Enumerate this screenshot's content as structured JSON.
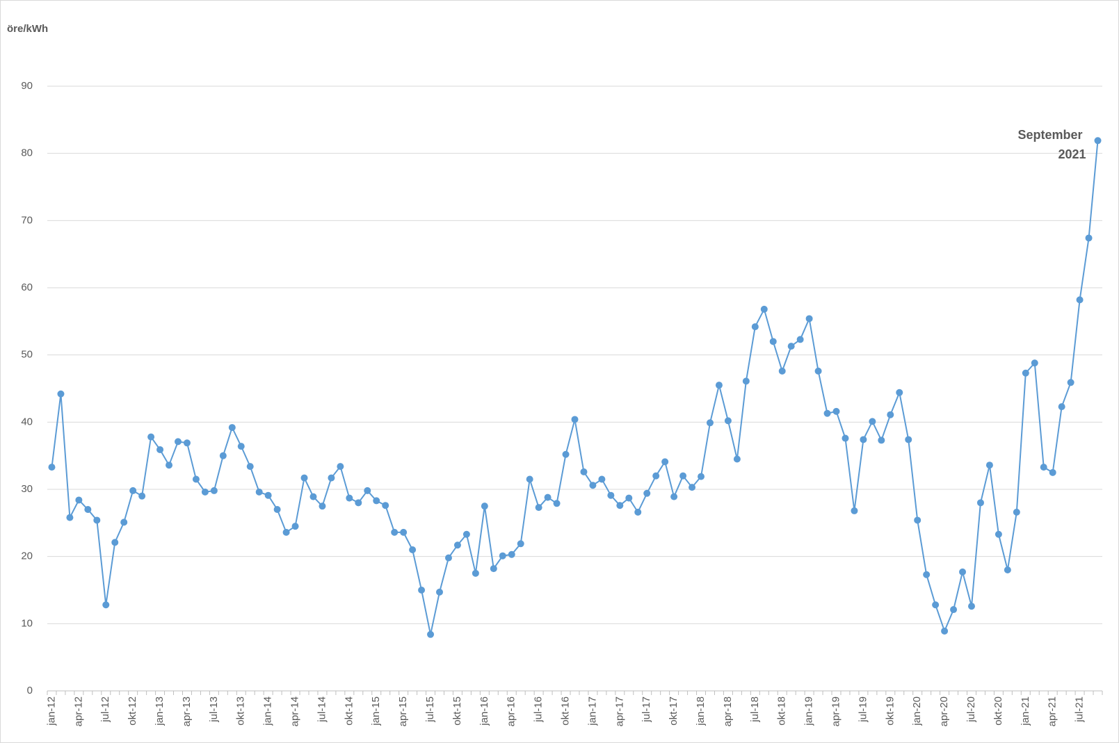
{
  "chart_data": {
    "type": "line",
    "ylabel": "öre/kWh",
    "categories": [
      "jan-12",
      null,
      null,
      "apr-12",
      null,
      null,
      "jul-12",
      null,
      null,
      "okt-12",
      null,
      null,
      "jan-13",
      null,
      null,
      "apr-13",
      null,
      null,
      "jul-13",
      null,
      null,
      "okt-13",
      null,
      null,
      "jan-14",
      null,
      null,
      "apr-14",
      null,
      null,
      "jul-14",
      null,
      null,
      "okt-14",
      null,
      null,
      "jan-15",
      null,
      null,
      "apr-15",
      null,
      null,
      "jul-15",
      null,
      null,
      "okt-15",
      null,
      null,
      "jan-16",
      null,
      null,
      "apr-16",
      null,
      null,
      "jul-16",
      null,
      null,
      "okt-16",
      null,
      null,
      "jan-17",
      null,
      null,
      "apr-17",
      null,
      null,
      "jul-17",
      null,
      null,
      "okt-17",
      null,
      null,
      "jan-18",
      null,
      null,
      "apr-18",
      null,
      null,
      "jul-18",
      null,
      null,
      "okt-18",
      null,
      null,
      "jan-19",
      null,
      null,
      "apr-19",
      null,
      null,
      "jul-19",
      null,
      null,
      "okt-19",
      null,
      null,
      "jan-20",
      null,
      null,
      "apr-20",
      null,
      null,
      "jul-20",
      null,
      null,
      "okt-20",
      null,
      null,
      "jan-21",
      null,
      null,
      "apr-21",
      null,
      null,
      "jul-21",
      null,
      null
    ],
    "values": [
      33.3,
      44.2,
      25.8,
      28.4,
      27.0,
      25.4,
      12.8,
      22.1,
      25.1,
      29.8,
      29.0,
      37.8,
      35.9,
      33.6,
      37.1,
      36.9,
      31.5,
      29.6,
      29.8,
      35.0,
      39.2,
      36.4,
      33.4,
      29.6,
      29.1,
      27.0,
      23.6,
      24.5,
      31.7,
      28.9,
      27.5,
      31.7,
      33.4,
      28.7,
      28.0,
      29.8,
      28.3,
      27.6,
      23.6,
      23.6,
      21.0,
      15.0,
      8.4,
      14.7,
      19.8,
      21.7,
      23.3,
      17.5,
      27.5,
      18.2,
      20.1,
      20.3,
      21.9,
      31.5,
      27.3,
      28.8,
      27.9,
      35.2,
      40.4,
      32.6,
      30.6,
      31.5,
      29.1,
      27.6,
      28.7,
      26.6,
      29.4,
      32.0,
      34.1,
      28.9,
      32.0,
      30.3,
      31.9,
      39.9,
      45.5,
      40.2,
      34.5,
      46.1,
      54.2,
      56.8,
      52.0,
      47.6,
      51.3,
      52.3,
      55.4,
      47.6,
      41.3,
      41.6,
      37.6,
      26.8,
      37.4,
      40.1,
      37.3,
      41.1,
      44.4,
      37.4,
      25.4,
      17.3,
      12.8,
      8.9,
      12.1,
      17.7,
      12.6,
      28.0,
      33.6,
      23.3,
      18.0,
      26.6,
      47.3,
      48.8,
      33.3,
      32.5,
      42.3,
      45.9,
      58.2,
      67.4,
      81.9
    ],
    "color": "#5b9bd5",
    "ylim": [
      0,
      90
    ],
    "yticks": [
      0,
      10,
      20,
      30,
      40,
      50,
      60,
      70,
      80,
      90
    ],
    "grid": true,
    "annotation": [
      "September",
      "2021"
    ]
  }
}
